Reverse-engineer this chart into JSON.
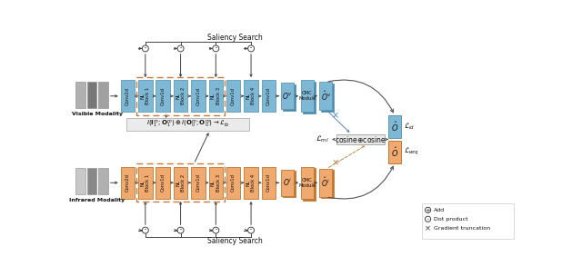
{
  "fig_width": 6.4,
  "fig_height": 3.04,
  "dpi": 100,
  "bg_color": "#ffffff",
  "blue_fill": "#7EB8D4",
  "blue_edge": "#5A9AB8",
  "blue_shadow": "#4E88A8",
  "orange_fill": "#F0A96E",
  "orange_edge": "#C07830",
  "orange_shadow": "#C07830",
  "gray_box": "#E8E8E8",
  "dashed_color": "#CC7733",
  "arrow_color": "#555555",
  "title_top": "Saliency Search",
  "title_bottom": "Saliency Search",
  "label_visible": "Visible Modality",
  "label_infrared": "Infrared Modality",
  "v_labels": [
    "Conv2d",
    "NL\nBlock 1",
    "Conv1d",
    "NL\nBlock 2",
    "Conv1d",
    "NL\nBlock 3",
    "Conv1d",
    "NL\nBlock 4",
    "Conv1d"
  ],
  "i_labels": [
    "Conv2d",
    "NL\nBlock 1",
    "Conv1d",
    "NL\nBlock 2",
    "Conv1d",
    "NL\nBlock 3",
    "Conv1d",
    "NL\nBlock 4",
    "Conv1d"
  ],
  "legend_add": "⊕  Add",
  "legend_dot": "⊙  Dot product",
  "legend_grad": "×  Gradient truncation"
}
